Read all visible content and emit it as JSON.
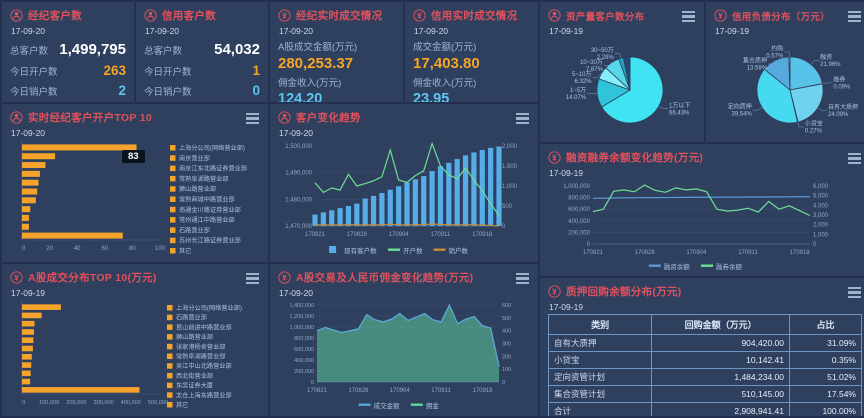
{
  "colors": {
    "accent_red": "#e0515c",
    "orange": "#f5a623",
    "light_blue": "#5cc5f2",
    "bar_orange": "#f6a32b",
    "bar_blue": "#56ade8",
    "line_green": "#6ede96",
    "line_blue": "#5b9bd5",
    "panel_bg": "#2f3f5e"
  },
  "stats": [
    {
      "title": "经纪客户数",
      "icon": "person",
      "date": "17-09-20",
      "rows": [
        {
          "label": "总客户数",
          "value": "1,499,795",
          "tone": "white"
        },
        {
          "label": "今日开户数",
          "value": "263",
          "tone": "orange"
        },
        {
          "label": "今日销户数",
          "value": "2",
          "tone": "blue"
        }
      ]
    },
    {
      "title": "信用客户数",
      "icon": "person",
      "date": "17-09-20",
      "rows": [
        {
          "label": "总客户数",
          "value": "54,032",
          "tone": "white"
        },
        {
          "label": "今日开户数",
          "value": "1",
          "tone": "orange"
        },
        {
          "label": "今日销户数",
          "value": "0",
          "tone": "blue"
        }
      ]
    },
    {
      "title": "经纪实时成交情况",
      "icon": "money",
      "date": "17-09-20",
      "metrics": [
        {
          "label": "A股成交金额(万元)",
          "value": "280,253.37",
          "tone": "orange"
        },
        {
          "label": "佣金收入(万元)",
          "value": "124.20",
          "tone": "blue"
        }
      ]
    },
    {
      "title": "信用实时成交情况",
      "icon": "money",
      "date": "17-09-20",
      "metrics": [
        {
          "label": "成交金额(万元)",
          "value": "17,403.80",
          "tone": "orange"
        },
        {
          "label": "佣金收入(万元)",
          "value": "23.95",
          "tone": "blue"
        }
      ]
    }
  ],
  "chart_data": [
    {
      "id": "open-top10",
      "type": "bar",
      "orientation": "horizontal",
      "title": "实时经纪客户开户TOP 10",
      "date": "17-09-20",
      "tooltip": "83",
      "categories": [
        "上海分公司(网络营业部)",
        "南京营业部",
        "南京江东北路证券营业部",
        "常熟阜湖路营业部",
        "狮山路营业部",
        "常熟商城中路营业部",
        "南通金川路证券营业部",
        "常州通江中路营业部",
        "石路营业部",
        "苏州长江路证券营业部",
        "其它"
      ],
      "values": [
        83,
        24,
        17,
        13,
        12,
        11,
        10,
        6,
        5,
        5,
        73
      ],
      "xlim": [
        0,
        100
      ],
      "xticks": [
        "0",
        "20",
        "40",
        "60",
        "80",
        "100"
      ],
      "bar_color": "#f6a32b",
      "legend_position": "right"
    },
    {
      "id": "customer-trend",
      "type": "bar+line",
      "title": "客户变化趋势",
      "date": "17-09-20",
      "n": 23,
      "x_labels": [
        "170821",
        "170828",
        "170904",
        "170911",
        "170918"
      ],
      "x_label_idx": [
        0,
        5,
        10,
        15,
        20
      ],
      "ylim_left": [
        1470000,
        1500000
      ],
      "yticks_left": [
        "1,470,000",
        "1,480,000",
        "1,490,000",
        "1,500,000"
      ],
      "ylim_right": [
        0,
        2000
      ],
      "yticks_right": [
        "0",
        "500",
        "1,000",
        "1,500",
        "2,000"
      ],
      "series": [
        {
          "name": "现有客户数",
          "type": "bar",
          "axis": "left",
          "color": "#56ade8",
          "values": [
            1474300,
            1475100,
            1475900,
            1476700,
            1477500,
            1478400,
            1480300,
            1481300,
            1482400,
            1483600,
            1484900,
            1486300,
            1487500,
            1488700,
            1490600,
            1492400,
            1493700,
            1495100,
            1496500,
            1497600,
            1498500,
            1499300,
            1499795
          ]
        },
        {
          "name": "开户数",
          "type": "line",
          "axis": "right",
          "color": "#6ede96",
          "values": [
            1080,
            840,
            950,
            900,
            1290,
            1000,
            1060,
            1130,
            1230,
            1900,
            1150,
            1090,
            1260,
            1380,
            2060,
            1500,
            1280,
            1180,
            1450,
            1150,
            880,
            560,
            263
          ]
        },
        {
          "name": "销户数",
          "type": "line",
          "axis": "right",
          "color": "#c98a2d",
          "values": [
            35,
            30,
            32,
            28,
            38,
            30,
            29,
            33,
            30,
            45,
            32,
            30,
            36,
            33,
            50,
            38,
            33,
            30,
            36,
            30,
            25,
            12,
            2
          ]
        }
      ]
    },
    {
      "id": "margin-trend",
      "type": "line",
      "title": "融资融券余额变化趋势(万元)",
      "date": "17-09-19",
      "n": 22,
      "x_labels": [
        "170821",
        "170828",
        "170904",
        "170911",
        "170918"
      ],
      "x_label_idx": [
        0,
        5,
        10,
        15,
        20
      ],
      "ylim_left": [
        0,
        1000000
      ],
      "yticks_left": [
        "0",
        "200,000",
        "400,000",
        "600,000",
        "800,000",
        "1,000,000"
      ],
      "ylim_right": [
        0,
        6000
      ],
      "yticks_right": [
        "0",
        "1,000",
        "2,000",
        "3,000",
        "4,000",
        "5,000",
        "6,000"
      ],
      "series": [
        {
          "name": "融资余额",
          "type": "line",
          "axis": "left",
          "color": "#5b9bd5",
          "values": [
            788000,
            790000,
            793000,
            796000,
            798000,
            799000,
            800000,
            801000,
            803000,
            804000,
            806000,
            806000,
            807000,
            808000,
            809000,
            810000,
            811000,
            812000,
            813000,
            814000,
            815000,
            816000
          ]
        },
        {
          "name": "融券余额",
          "type": "line",
          "axis": "right",
          "color": "#6ede96",
          "values": [
            3350,
            3600,
            5450,
            5600,
            5400,
            6100,
            5550,
            5350,
            5800,
            5600,
            5700,
            5400,
            3600,
            3400,
            3500,
            3700,
            3300,
            4400,
            3600,
            3950,
            3450,
            2950
          ]
        }
      ]
    },
    {
      "id": "turnover-top10",
      "type": "bar",
      "orientation": "horizontal",
      "title": "A股成交分布TOP 10(万元)",
      "date": "17-09-19",
      "categories": [
        "上海分公司(网络营业部)",
        "石路营业部",
        "昆山前进中路营业部",
        "狮山路营业部",
        "张家港杨舍营业部",
        "常熟阜湖路营业部",
        "吴江中山北路营业部",
        "西北街营业部",
        "东吴证券大厦",
        "太仓上海东路营业部",
        "其它"
      ],
      "values": [
        143000,
        72000,
        46000,
        44000,
        42000,
        40000,
        36000,
        34000,
        32000,
        30000,
        432000
      ],
      "xlim": [
        0,
        500000
      ],
      "xticks": [
        "0",
        "100,000",
        "200,000",
        "300,000",
        "400,000",
        "500,000"
      ],
      "bar_color": "#f6a32b",
      "legend_position": "right"
    },
    {
      "id": "turnover-trend",
      "type": "area+line",
      "title": "A股交易及人民币佣金变化趋势(万元)",
      "date": "17-09-20",
      "n": 23,
      "x_labels": [
        "170821",
        "170828",
        "170904",
        "170911",
        "170918"
      ],
      "x_label_idx": [
        0,
        5,
        10,
        15,
        20
      ],
      "ylim_left": [
        0,
        1400000
      ],
      "yticks_left": [
        "0",
        "200,000",
        "400,000",
        "600,000",
        "800,000",
        "1,000,000",
        "1,200,000",
        "1,400,000"
      ],
      "ylim_right": [
        0,
        600
      ],
      "yticks_right": [
        "0",
        "100",
        "200",
        "300",
        "400",
        "500",
        "600"
      ],
      "series": [
        {
          "name": "成交金额",
          "type": "line",
          "axis": "left",
          "color": "#58a6dd",
          "values": [
            930000,
            990000,
            940000,
            900000,
            930000,
            960000,
            1220000,
            1130000,
            1090000,
            1140000,
            1240000,
            1120000,
            1180000,
            1240000,
            1130000,
            1090000,
            1390000,
            1060000,
            1140000,
            1190000,
            1020000,
            980000,
            280253
          ]
        },
        {
          "name": "佣金",
          "type": "area",
          "axis": "right",
          "color": "#5fd8a0",
          "values": [
            400,
            425,
            405,
            385,
            400,
            415,
            525,
            485,
            470,
            490,
            535,
            480,
            505,
            535,
            485,
            470,
            600,
            455,
            490,
            510,
            440,
            420,
            124
          ]
        }
      ]
    },
    {
      "id": "asset-pie",
      "type": "pie",
      "title": "资产量客户数分布",
      "date": "17-09-19",
      "slices": [
        {
          "name": "1万以下",
          "pct": 66.43,
          "color": "#3fe3f2",
          "labeled": true
        },
        {
          "name": "1~5万",
          "pct": 14.07,
          "color": "#2fc4da",
          "labeled": true
        },
        {
          "name": "5~10万",
          "pct": 6.32,
          "color": "#83eef7",
          "labeled": true
        },
        {
          "name": "10~30万",
          "pct": 7.67,
          "color": "#54d8ea",
          "labeled": true
        },
        {
          "name": "30~50万",
          "pct": 2.29,
          "color": "#27a3c0",
          "labeled": true
        },
        {
          "name": "",
          "pct": 3.22,
          "color": "#23496e",
          "labeled": false
        }
      ]
    },
    {
      "id": "credit-pie",
      "type": "pie",
      "title": "信用负债分布（万元）",
      "date": "17-09-19",
      "slices": [
        {
          "name": "融资",
          "pct": 21.96,
          "color": "#58c3e8",
          "labeled": true
        },
        {
          "name": "融券",
          "pct": 0.09,
          "color": "#2f9fd0",
          "labeled": true
        },
        {
          "name": "自有大质押",
          "pct": 24.09,
          "color": "#6fd2ee",
          "labeled": true
        },
        {
          "name": "小贷宝",
          "pct": 0.27,
          "color": "#2fc0d8",
          "labeled": true
        },
        {
          "name": "定向质押",
          "pct": 39.54,
          "color": "#47d9f0",
          "labeled": true
        },
        {
          "name": "集合质押",
          "pct": 13.59,
          "color": "#57a8dc",
          "labeled": true
        },
        {
          "name": "约购",
          "pct": 0.57,
          "color": "#7ae8f6",
          "labeled": true
        }
      ]
    },
    {
      "id": "pledge-table",
      "type": "table",
      "title": "质押回购余额分布(万元)",
      "date": "17-09-19",
      "headers": [
        "类别",
        "回购金额（万元）",
        "占比"
      ],
      "rows": [
        [
          "自有大质押",
          "904,420.00",
          "31.09%"
        ],
        [
          "小贷宝",
          "10,142.41",
          "0.35%"
        ],
        [
          "定向资管计划",
          "1,484,234.00",
          "51.02%"
        ],
        [
          "集合资管计划",
          "510,145.00",
          "17.54%"
        ],
        [
          "合计",
          "2,908,941.41",
          "100.00%"
        ]
      ]
    }
  ]
}
